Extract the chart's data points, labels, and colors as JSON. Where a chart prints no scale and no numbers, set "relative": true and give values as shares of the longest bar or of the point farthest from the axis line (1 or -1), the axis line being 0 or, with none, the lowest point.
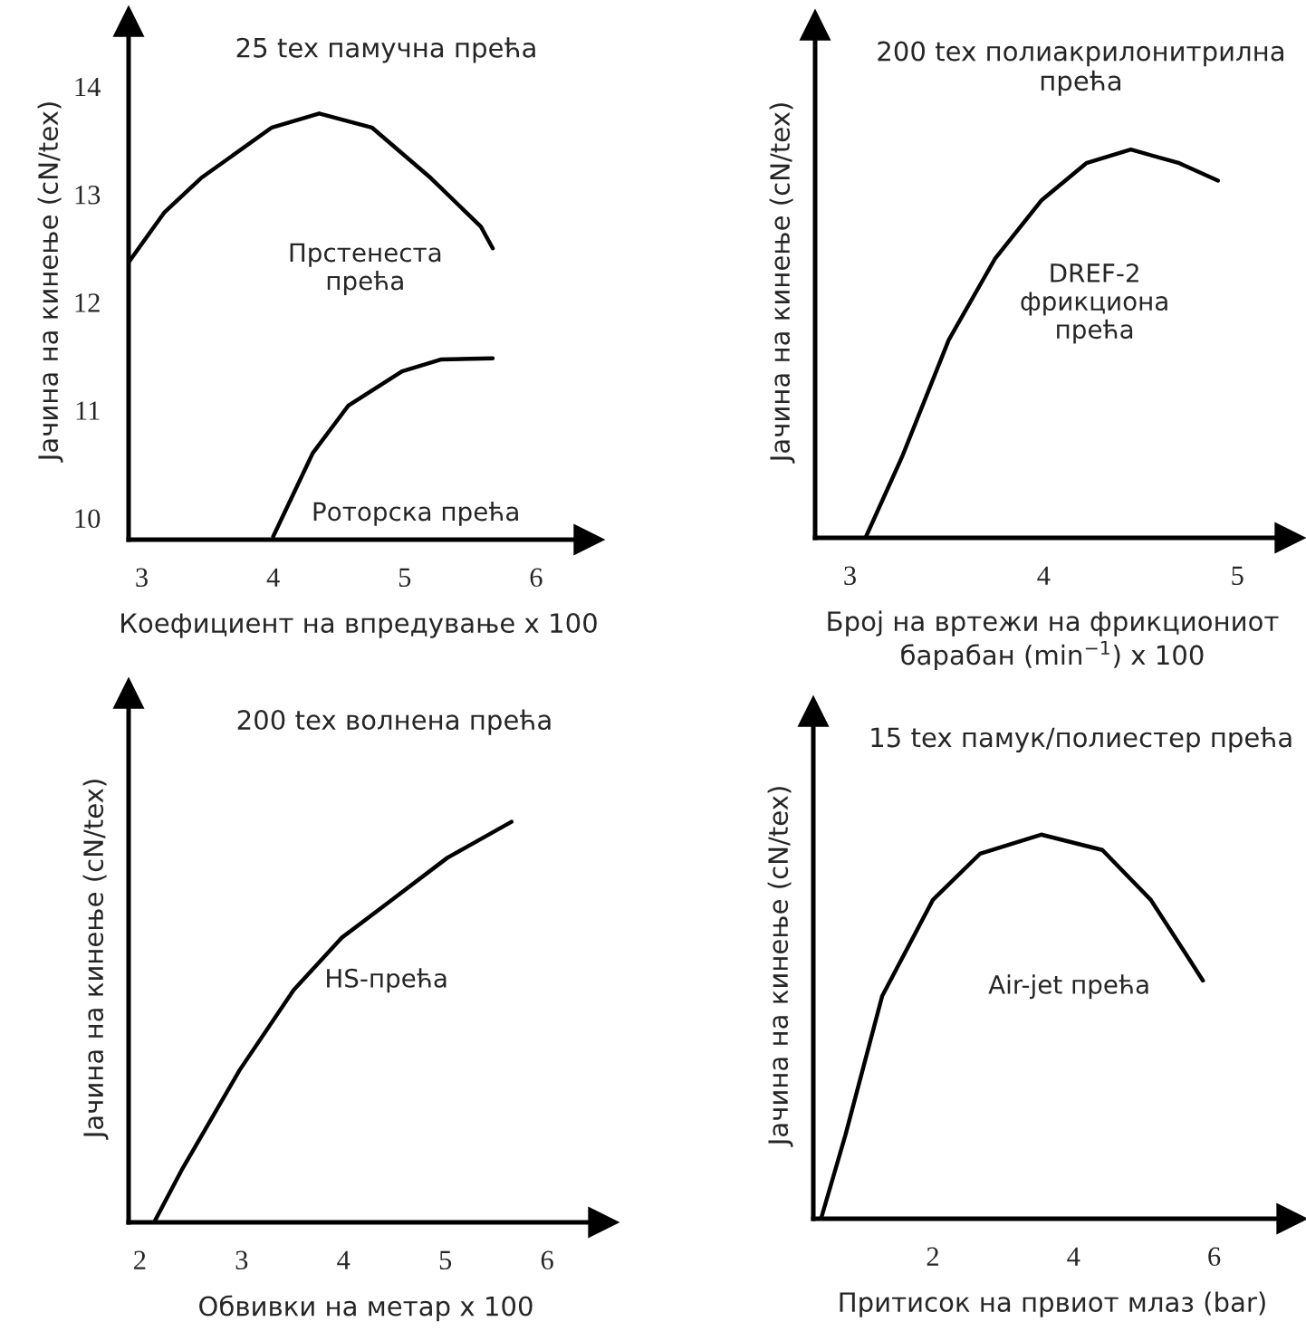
{
  "chart_data": [
    {
      "type": "line",
      "title": "25 tex памучна прећа",
      "xlabel": "Коефициент на впредување x 100",
      "ylabel": "Јачина на кинење (cN/tex)",
      "xlim": [
        2.9,
        6.4
      ],
      "ylim": [
        9.8,
        14.6
      ],
      "xticks": [
        3,
        4,
        5,
        6
      ],
      "yticks": [
        10,
        11,
        12,
        13,
        14
      ],
      "grid": false,
      "legend": false,
      "series": [
        {
          "name": "Прстенеста\nпрећа",
          "color": "#000000",
          "x": [
            2.9,
            3.17,
            3.45,
            3.99,
            4.35,
            4.75,
            5.2,
            5.58,
            5.67
          ],
          "values": [
            12.37,
            12.83,
            13.15,
            13.62,
            13.75,
            13.62,
            13.15,
            12.7,
            12.5
          ]
        },
        {
          "name": "Роторска прећа",
          "color": "#000000",
          "x": [
            4.0,
            4.3,
            4.57,
            4.98,
            5.28,
            5.67
          ],
          "values": [
            9.83,
            10.6,
            11.04,
            11.36,
            11.47,
            11.48
          ]
        }
      ]
    },
    {
      "type": "line",
      "relative": true,
      "title": "200 tex полиакрилонитрилна\nпрећа",
      "xlabel": "Број на вртежи на фрикциониот\nбарабан (min$^{−1}$) x 100",
      "ylabel": "Јачина на кинење (cN/tex)",
      "xlim": [
        2.82,
        5.27
      ],
      "xticks": [
        3,
        4,
        5
      ],
      "grid": false,
      "legend": false,
      "series": [
        {
          "name": "DREF-2\nфрикциона\nпрећа",
          "color": "#000000",
          "x": [
            3.08,
            3.27,
            3.51,
            3.75,
            3.99,
            4.22,
            4.45,
            4.7,
            4.9
          ],
          "values": [
            0,
            0.21,
            0.51,
            0.72,
            0.87,
            0.965,
            1.0,
            0.965,
            0.92
          ]
        }
      ]
    },
    {
      "type": "line",
      "relative": true,
      "title": "200 tex волнена прећа",
      "xlabel": "Обвивки на метар x 100",
      "ylabel": "Јачина на кинење (cN/tex)",
      "xlim": [
        1.89,
        6.55
      ],
      "xticks": [
        2,
        3,
        4,
        5,
        6
      ],
      "grid": false,
      "legend": false,
      "series": [
        {
          "name": "HS-прећа",
          "color": "#000000",
          "x": [
            2.14,
            2.41,
            2.98,
            3.51,
            3.98,
            4.45,
            5.02,
            5.65
          ],
          "values": [
            0,
            0.13,
            0.38,
            0.58,
            0.71,
            0.8,
            0.91,
            1.0
          ]
        }
      ]
    },
    {
      "type": "line",
      "relative": true,
      "title": "15 tex памук/полиестер прећа",
      "xlabel": "Притисок на првиот млаз (bar)",
      "ylabel": "Јачина на кинење (cN/tex)",
      "xlim": [
        0.3,
        7.1
      ],
      "xticks": [
        2,
        4,
        6
      ],
      "grid": false,
      "legend": false,
      "series": [
        {
          "name": "Air-jet прећа",
          "color": "#000000",
          "x": [
            0.41,
            0.76,
            1.28,
            2.0,
            2.67,
            3.54,
            4.41,
            5.1,
            5.63,
            5.84
          ],
          "values": [
            0,
            0.22,
            0.58,
            0.83,
            0.95,
            1.0,
            0.96,
            0.83,
            0.68,
            0.62
          ]
        }
      ]
    }
  ]
}
